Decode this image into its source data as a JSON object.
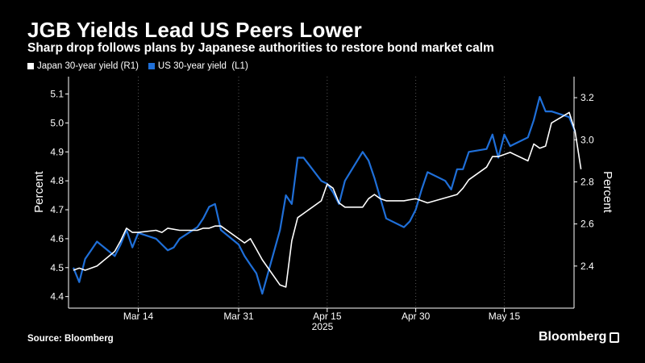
{
  "chart_data": {
    "type": "line",
    "title": "JGB Yields Lead US Peers Lower",
    "subtitle": "Sharp drop follows plans by Japanese authorities to restore bond market calm",
    "left_axis_label": "Percent",
    "right_axis_label": "Percent",
    "left_ylim": [
      4.36,
      5.16
    ],
    "right_ylim": [
      2.2,
      3.3
    ],
    "left_ticks": [
      "4.4",
      "4.5",
      "4.6",
      "4.7",
      "4.8",
      "4.9",
      "5.0",
      "5.1"
    ],
    "right_ticks": [
      "2.4",
      "2.6",
      "2.8",
      "3.0",
      "3.2"
    ],
    "x_ticks": [
      {
        "date": "2025-03-14",
        "label": "Mar 14"
      },
      {
        "date": "2025-03-31",
        "label": "Mar 31"
      },
      {
        "date": "2025-04-15",
        "label": "Apr 15"
      },
      {
        "date": "2025-04-30",
        "label": "Apr 30"
      },
      {
        "date": "2025-05-15",
        "label": "May 15"
      }
    ],
    "x_year_label": "2025",
    "xlim": [
      "2025-03-03",
      "2025-05-26"
    ],
    "grid": "vertical dashed",
    "legend_position": "top-left",
    "series": [
      {
        "name": "Japan 30-year yield (R1)",
        "axis": "right",
        "color": "#ffffff",
        "points": [
          [
            "2025-03-03",
            2.38
          ],
          [
            "2025-03-04",
            2.39
          ],
          [
            "2025-03-05",
            2.38
          ],
          [
            "2025-03-06",
            2.39
          ],
          [
            "2025-03-07",
            2.4
          ],
          [
            "2025-03-10",
            2.47
          ],
          [
            "2025-03-11",
            2.52
          ],
          [
            "2025-03-12",
            2.58
          ],
          [
            "2025-03-13",
            2.56
          ],
          [
            "2025-03-14",
            2.56
          ],
          [
            "2025-03-17",
            2.57
          ],
          [
            "2025-03-18",
            2.56
          ],
          [
            "2025-03-19",
            2.58
          ],
          [
            "2025-03-21",
            2.57
          ],
          [
            "2025-03-24",
            2.57
          ],
          [
            "2025-03-25",
            2.58
          ],
          [
            "2025-03-26",
            2.58
          ],
          [
            "2025-03-27",
            2.59
          ],
          [
            "2025-03-28",
            2.59
          ],
          [
            "2025-03-31",
            2.53
          ],
          [
            "2025-04-01",
            2.51
          ],
          [
            "2025-04-02",
            2.53
          ],
          [
            "2025-04-03",
            2.48
          ],
          [
            "2025-04-04",
            2.43
          ],
          [
            "2025-04-07",
            2.31
          ],
          [
            "2025-04-08",
            2.3
          ],
          [
            "2025-04-09",
            2.52
          ],
          [
            "2025-04-10",
            2.63
          ],
          [
            "2025-04-11",
            2.65
          ],
          [
            "2025-04-14",
            2.71
          ],
          [
            "2025-04-15",
            2.79
          ],
          [
            "2025-04-16",
            2.77
          ],
          [
            "2025-04-17",
            2.7
          ],
          [
            "2025-04-18",
            2.68
          ],
          [
            "2025-04-21",
            2.68
          ],
          [
            "2025-04-22",
            2.72
          ],
          [
            "2025-04-23",
            2.74
          ],
          [
            "2025-04-24",
            2.72
          ],
          [
            "2025-04-25",
            2.71
          ],
          [
            "2025-04-28",
            2.71
          ],
          [
            "2025-04-30",
            2.72
          ],
          [
            "2025-05-01",
            2.71
          ],
          [
            "2025-05-02",
            2.7
          ],
          [
            "2025-05-07",
            2.74
          ],
          [
            "2025-05-08",
            2.77
          ],
          [
            "2025-05-09",
            2.81
          ],
          [
            "2025-05-12",
            2.87
          ],
          [
            "2025-05-13",
            2.92
          ],
          [
            "2025-05-14",
            2.92
          ],
          [
            "2025-05-15",
            2.93
          ],
          [
            "2025-05-16",
            2.94
          ],
          [
            "2025-05-19",
            2.9
          ],
          [
            "2025-05-20",
            2.98
          ],
          [
            "2025-05-21",
            2.96
          ],
          [
            "2025-05-22",
            2.97
          ],
          [
            "2025-05-23",
            3.08
          ],
          [
            "2025-05-26",
            3.13
          ],
          [
            "2025-05-27",
            3.04
          ],
          [
            "2025-05-28",
            2.86
          ]
        ]
      },
      {
        "name": "US 30-year yield  (L1)",
        "axis": "left",
        "color": "#1f6fd8",
        "points": [
          [
            "2025-03-03",
            4.5
          ],
          [
            "2025-03-04",
            4.45
          ],
          [
            "2025-03-05",
            4.53
          ],
          [
            "2025-03-06",
            4.56
          ],
          [
            "2025-03-07",
            4.59
          ],
          [
            "2025-03-10",
            4.54
          ],
          [
            "2025-03-11",
            4.58
          ],
          [
            "2025-03-12",
            4.63
          ],
          [
            "2025-03-13",
            4.57
          ],
          [
            "2025-03-14",
            4.62
          ],
          [
            "2025-03-17",
            4.6
          ],
          [
            "2025-03-18",
            4.58
          ],
          [
            "2025-03-19",
            4.56
          ],
          [
            "2025-03-20",
            4.57
          ],
          [
            "2025-03-21",
            4.6
          ],
          [
            "2025-03-24",
            4.64
          ],
          [
            "2025-03-25",
            4.67
          ],
          [
            "2025-03-26",
            4.71
          ],
          [
            "2025-03-27",
            4.72
          ],
          [
            "2025-03-28",
            4.63
          ],
          [
            "2025-03-31",
            4.58
          ],
          [
            "2025-04-01",
            4.54
          ],
          [
            "2025-04-02",
            4.51
          ],
          [
            "2025-04-03",
            4.48
          ],
          [
            "2025-04-04",
            4.41
          ],
          [
            "2025-04-07",
            4.63
          ],
          [
            "2025-04-08",
            4.75
          ],
          [
            "2025-04-09",
            4.72
          ],
          [
            "2025-04-10",
            4.88
          ],
          [
            "2025-04-11",
            4.88
          ],
          [
            "2025-04-14",
            4.8
          ],
          [
            "2025-04-15",
            4.79
          ],
          [
            "2025-04-16",
            4.76
          ],
          [
            "2025-04-17",
            4.72
          ],
          [
            "2025-04-18",
            4.8
          ],
          [
            "2025-04-21",
            4.9
          ],
          [
            "2025-04-22",
            4.87
          ],
          [
            "2025-04-23",
            4.81
          ],
          [
            "2025-04-24",
            4.74
          ],
          [
            "2025-04-25",
            4.67
          ],
          [
            "2025-04-28",
            4.64
          ],
          [
            "2025-04-29",
            4.66
          ],
          [
            "2025-04-30",
            4.7
          ],
          [
            "2025-05-01",
            4.77
          ],
          [
            "2025-05-02",
            4.83
          ],
          [
            "2025-05-05",
            4.8
          ],
          [
            "2025-05-06",
            4.77
          ],
          [
            "2025-05-07",
            4.84
          ],
          [
            "2025-05-08",
            4.84
          ],
          [
            "2025-05-09",
            4.9
          ],
          [
            "2025-05-12",
            4.91
          ],
          [
            "2025-05-13",
            4.96
          ],
          [
            "2025-05-14",
            4.88
          ],
          [
            "2025-05-15",
            4.96
          ],
          [
            "2025-05-16",
            4.92
          ],
          [
            "2025-05-19",
            4.95
          ],
          [
            "2025-05-20",
            5.01
          ],
          [
            "2025-05-21",
            5.09
          ],
          [
            "2025-05-22",
            5.04
          ],
          [
            "2025-05-23",
            5.04
          ],
          [
            "2025-05-26",
            5.02
          ],
          [
            "2025-05-27",
            4.97
          ]
        ]
      }
    ]
  },
  "footer": {
    "source": "Source: Bloomberg",
    "brand": "Bloomberg"
  }
}
